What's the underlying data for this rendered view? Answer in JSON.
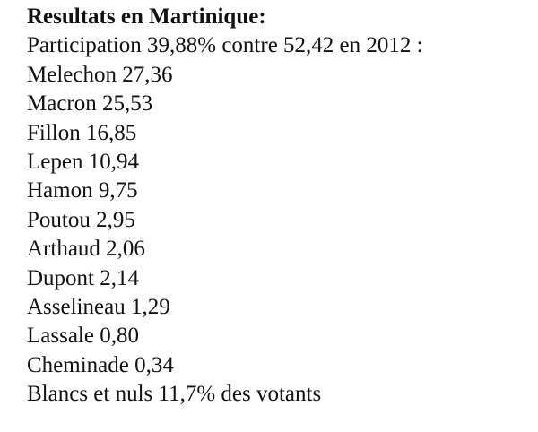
{
  "title": "Resultats en Martinique:",
  "lines": [
    "Participation 39,88% contre 52,42 en 2012 :",
    "Melechon 27,36",
    "Macron 25,53",
    "Fillon 16,85",
    "Lepen 10,94",
    "Hamon 9,75",
    "Poutou 2,95",
    "Arthaud 2,06",
    "Dupont 2,14",
    "Asselineau 1,29",
    "Lassale 0,80",
    "Cheminade 0,34",
    "Blancs et nuls 11,7% des votants"
  ]
}
